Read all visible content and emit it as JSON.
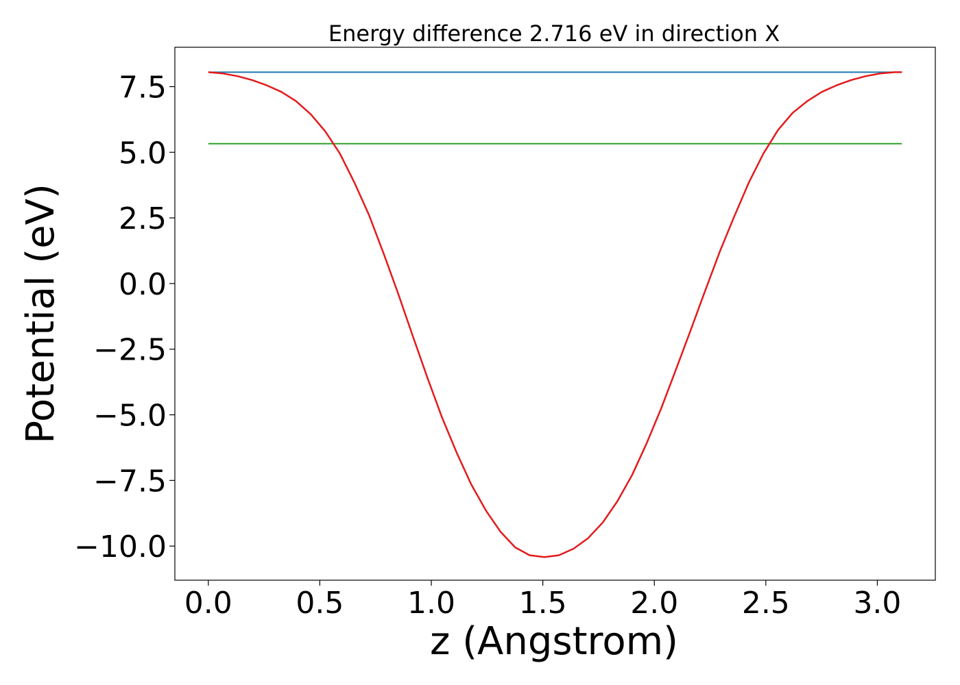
{
  "chart_data": {
    "type": "line",
    "title": "Energy difference 2.716 eV in direction X",
    "xlabel": "z (Angstrom)",
    "ylabel": "Potential (eV)",
    "xlim": [
      -0.15,
      3.26
    ],
    "ylim": [
      -11.3,
      9.0
    ],
    "xticks": [
      0.0,
      0.5,
      1.0,
      1.5,
      2.0,
      2.5,
      3.0
    ],
    "xtick_labels": [
      "0.0",
      "0.5",
      "1.0",
      "1.5",
      "2.0",
      "2.5",
      "3.0"
    ],
    "yticks": [
      7.5,
      5.0,
      2.5,
      0.0,
      -2.5,
      -5.0,
      -7.5,
      -10.0
    ],
    "ytick_labels": [
      "7.5",
      "5.0",
      "2.5",
      "0.0",
      "−2.5",
      "−5.0",
      "−7.5",
      "−10.0"
    ],
    "grid": false,
    "legend": "none",
    "series": [
      {
        "color": "#1f77b4",
        "x": [
          0.0,
          3.11
        ],
        "y": [
          8.05,
          8.05
        ]
      },
      {
        "color": "#2ca02c",
        "x": [
          0.0,
          3.11
        ],
        "y": [
          5.33,
          5.33
        ]
      },
      {
        "color": "#e31a1c",
        "x": [
          0.0,
          0.066,
          0.131,
          0.197,
          0.262,
          0.328,
          0.393,
          0.459,
          0.524,
          0.59,
          0.655,
          0.721,
          0.786,
          0.852,
          0.917,
          0.983,
          1.048,
          1.114,
          1.179,
          1.245,
          1.31,
          1.376,
          1.441,
          1.507,
          1.572,
          1.638,
          1.703,
          1.769,
          1.834,
          1.9,
          1.965,
          2.031,
          2.096,
          2.162,
          2.227,
          2.293,
          2.358,
          2.424,
          2.489,
          2.555,
          2.62,
          2.686,
          2.751,
          2.817,
          2.882,
          2.948,
          3.013,
          3.079,
          3.11
        ],
        "y": [
          8.05,
          8.0,
          7.9,
          7.75,
          7.55,
          7.3,
          6.95,
          6.45,
          5.8,
          4.95,
          3.85,
          2.6,
          1.15,
          -0.4,
          -2.0,
          -3.6,
          -5.1,
          -6.45,
          -7.65,
          -8.65,
          -9.45,
          -10.05,
          -10.35,
          -10.42,
          -10.35,
          -10.1,
          -9.7,
          -9.1,
          -8.3,
          -7.3,
          -6.1,
          -4.75,
          -3.3,
          -1.8,
          -0.3,
          1.2,
          2.55,
          3.85,
          4.95,
          5.85,
          6.5,
          6.95,
          7.3,
          7.55,
          7.75,
          7.9,
          8.0,
          8.05,
          8.05
        ]
      }
    ]
  }
}
